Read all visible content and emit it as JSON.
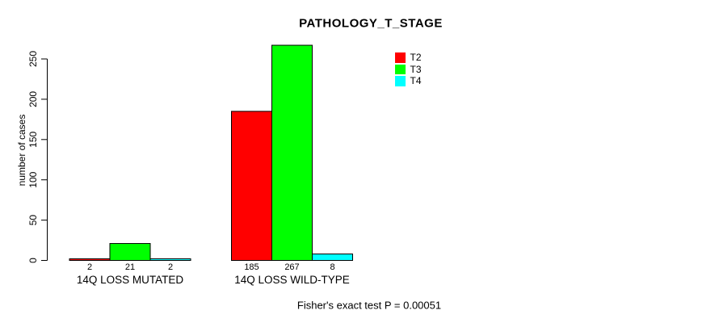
{
  "chart_data": {
    "type": "bar",
    "title": "PATHOLOGY_T_STAGE",
    "ylabel": "number of cases",
    "xlabel": "",
    "footnote": "Fisher's exact test P = 0.00051",
    "categories": [
      "14Q LOSS MUTATED",
      "14Q LOSS WILD-TYPE"
    ],
    "series": [
      {
        "name": "T2",
        "color": "#FF0000",
        "values": [
          2,
          185
        ]
      },
      {
        "name": "T3",
        "color": "#00FF00",
        "values": [
          21,
          267
        ]
      },
      {
        "name": "T4",
        "color": "#00FFFF",
        "values": [
          2,
          8
        ]
      }
    ],
    "bar_value_labels": [
      [
        "2",
        "21",
        "2"
      ],
      [
        "185",
        "267",
        "8"
      ]
    ],
    "yticks": [
      0,
      50,
      100,
      150,
      200,
      250
    ],
    "ylim": [
      0,
      250
    ],
    "grid": false,
    "legend_position": "top-right",
    "axis_color": "#000000",
    "bar_border_color": "#000000",
    "background_color": "#FFFFFF"
  }
}
